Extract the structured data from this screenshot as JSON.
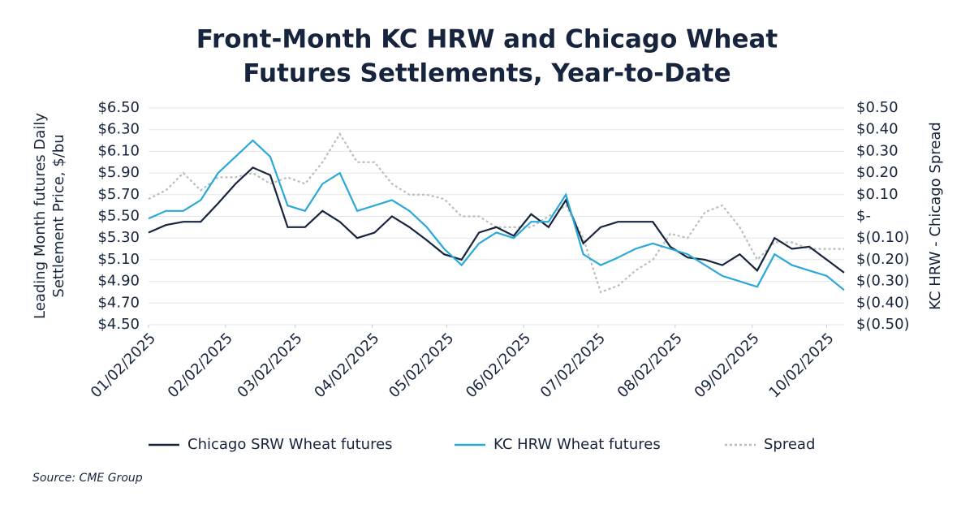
{
  "chart_data": {
    "type": "line",
    "title": [
      "Front-Month KC HRW and Chicago Wheat",
      "Futures Settlements, Year-to-Date"
    ],
    "y_label": [
      "Leading Month futures Daily",
      "Settlement Price, $/bu"
    ],
    "y2_label": "KC HRW - Chicago Spread",
    "source": "Source: CME Group",
    "x": [
      "2025-01-02",
      "2025-01-09",
      "2025-01-16",
      "2025-01-23",
      "2025-01-30",
      "2025-02-06",
      "2025-02-13",
      "2025-02-20",
      "2025-02-27",
      "2025-03-06",
      "2025-03-13",
      "2025-03-20",
      "2025-03-27",
      "2025-04-03",
      "2025-04-10",
      "2025-04-17",
      "2025-04-24",
      "2025-05-01",
      "2025-05-08",
      "2025-05-15",
      "2025-05-22",
      "2025-05-29",
      "2025-06-05",
      "2025-06-12",
      "2025-06-19",
      "2025-06-26",
      "2025-07-03",
      "2025-07-10",
      "2025-07-17",
      "2025-07-24",
      "2025-07-31",
      "2025-08-07",
      "2025-08-14",
      "2025-08-21",
      "2025-08-28",
      "2025-09-04",
      "2025-09-11",
      "2025-09-18",
      "2025-09-25",
      "2025-10-02",
      "2025-10-09"
    ],
    "xlim": [
      "2025-01-02",
      "2025-10-09"
    ],
    "xticks": [
      {
        "value": "2025-01-02",
        "label": "01/02/2025"
      },
      {
        "value": "2025-02-02",
        "label": "02/02/2025"
      },
      {
        "value": "2025-03-02",
        "label": "03/02/2025"
      },
      {
        "value": "2025-04-02",
        "label": "04/02/2025"
      },
      {
        "value": "2025-05-02",
        "label": "05/02/2025"
      },
      {
        "value": "2025-06-02",
        "label": "06/02/2025"
      },
      {
        "value": "2025-07-02",
        "label": "07/02/2025"
      },
      {
        "value": "2025-08-02",
        "label": "08/02/2025"
      },
      {
        "value": "2025-09-02",
        "label": "09/02/2025"
      },
      {
        "value": "2025-10-02",
        "label": "10/02/2025"
      }
    ],
    "ylim": [
      4.5,
      6.5
    ],
    "yticks": [
      {
        "value": 4.5,
        "label": "$4.50"
      },
      {
        "value": 4.7,
        "label": "$4.70"
      },
      {
        "value": 4.9,
        "label": "$4.90"
      },
      {
        "value": 5.1,
        "label": "$5.10"
      },
      {
        "value": 5.3,
        "label": "$5.30"
      },
      {
        "value": 5.5,
        "label": "$5.50"
      },
      {
        "value": 5.7,
        "label": "$5.70"
      },
      {
        "value": 5.9,
        "label": "$5.90"
      },
      {
        "value": 6.1,
        "label": "$6.10"
      },
      {
        "value": 6.3,
        "label": "$6.30"
      },
      {
        "value": 6.5,
        "label": "$6.50"
      }
    ],
    "y2lim": [
      -0.5,
      0.5
    ],
    "y2ticks": [
      {
        "value": -0.5,
        "label": "$(0.50)"
      },
      {
        "value": -0.4,
        "label": "$(0.40)"
      },
      {
        "value": -0.3,
        "label": "$(0.30)"
      },
      {
        "value": -0.2,
        "label": "$(0.20)"
      },
      {
        "value": -0.1,
        "label": "$(0.10)"
      },
      {
        "value": 0,
        "label": "$-"
      },
      {
        "value": 0.1,
        "label": "$0.10"
      },
      {
        "value": 0.2,
        "label": "$0.20"
      },
      {
        "value": 0.3,
        "label": "$0.30"
      },
      {
        "value": 0.4,
        "label": "$0.40"
      },
      {
        "value": 0.5,
        "label": "$0.50"
      }
    ],
    "grid": true,
    "legend": "bottom",
    "series": [
      {
        "name": "Chicago SRW Wheat futures",
        "color": "#16253d",
        "dash": "solid",
        "values": [
          5.35,
          5.42,
          5.45,
          5.45,
          5.62,
          5.8,
          5.95,
          5.88,
          5.4,
          5.4,
          5.55,
          5.45,
          5.3,
          5.35,
          5.5,
          5.4,
          5.28,
          5.15,
          5.1,
          5.35,
          5.4,
          5.32,
          5.52,
          5.4,
          5.65,
          5.25,
          5.4,
          5.45,
          5.45,
          5.45,
          5.22,
          5.12,
          5.1,
          5.05,
          5.15,
          5.0,
          5.3,
          5.2,
          5.22,
          5.1,
          4.98
        ]
      },
      {
        "name": "KC HRW Wheat futures",
        "color": "#2aa8d8",
        "dash": "solid",
        "values": [
          5.48,
          5.55,
          5.55,
          5.65,
          5.9,
          6.05,
          6.2,
          6.05,
          5.6,
          5.55,
          5.8,
          5.9,
          5.55,
          5.6,
          5.65,
          5.55,
          5.4,
          5.2,
          5.05,
          5.25,
          5.35,
          5.3,
          5.45,
          5.45,
          5.7,
          5.15,
          5.05,
          5.12,
          5.2,
          5.25,
          5.2,
          5.15,
          5.05,
          4.95,
          4.9,
          4.85,
          5.15,
          5.05,
          5.0,
          4.95,
          4.82
        ]
      },
      {
        "name": "Spread",
        "color": "#b9bdc2",
        "dash": "dotted",
        "axis": "y2",
        "values": [
          0.08,
          0.12,
          0.2,
          0.12,
          0.18,
          0.18,
          0.2,
          0.15,
          0.18,
          0.15,
          0.25,
          0.38,
          0.25,
          0.25,
          0.15,
          0.1,
          0.1,
          0.08,
          0.0,
          0.0,
          -0.05,
          -0.05,
          -0.05,
          0.0,
          0.05,
          -0.1,
          -0.35,
          -0.32,
          -0.25,
          -0.2,
          -0.08,
          -0.1,
          0.02,
          0.05,
          -0.05,
          -0.2,
          -0.12,
          -0.12,
          -0.15,
          -0.15,
          -0.15
        ]
      }
    ]
  }
}
